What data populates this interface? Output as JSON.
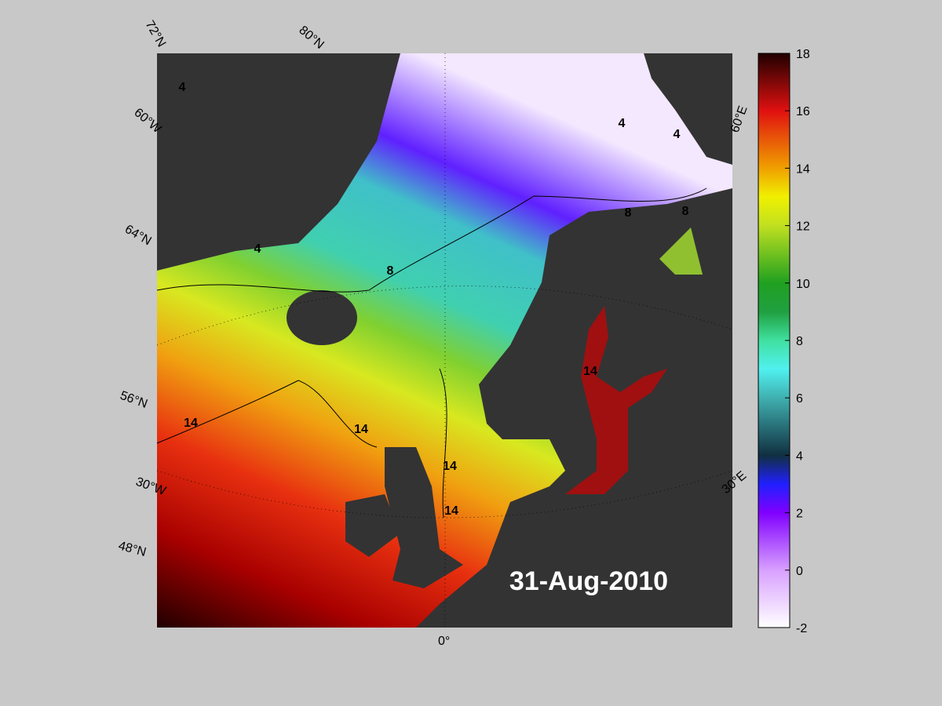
{
  "date": "31-Aug-2010",
  "colorbar": {
    "range": [
      -2,
      18
    ],
    "ticks": [
      -2,
      0,
      2,
      4,
      6,
      8,
      10,
      12,
      14,
      16,
      18
    ]
  },
  "grid_labels": [
    "72°N",
    "80°N",
    "60°W",
    "64°N",
    "56°N",
    "30°W",
    "48°N",
    "0°",
    "30°E",
    "60°E"
  ],
  "contour_labels": [
    4,
    4,
    4,
    4,
    8,
    8,
    8,
    14,
    14,
    14,
    14,
    14
  ]
}
